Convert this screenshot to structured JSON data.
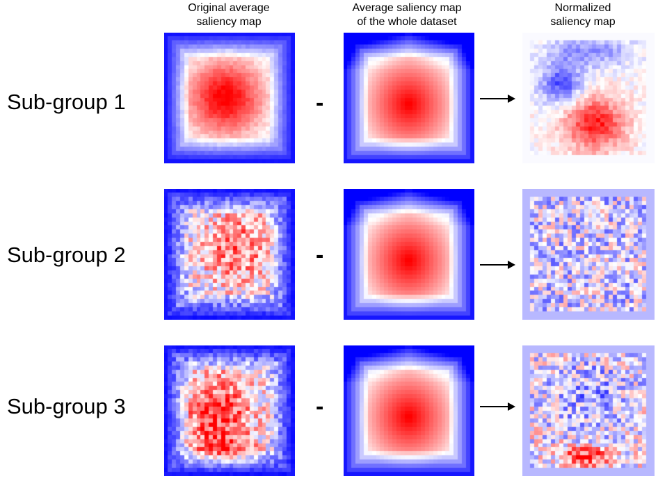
{
  "headers": {
    "original": [
      "Original average",
      "saliency map"
    ],
    "average": [
      "Average saliency map",
      "of the whole dataset"
    ],
    "normalized": [
      "Normalized",
      "saliency map"
    ]
  },
  "operator": "-",
  "rows": [
    {
      "label": "Sub-group 1"
    },
    {
      "label": "Sub-group 2"
    },
    {
      "label": "Sub-group 3"
    }
  ],
  "colors": {
    "positive": "#ff0000",
    "neutral": "#ffffff",
    "negative": "#0000ff"
  }
}
